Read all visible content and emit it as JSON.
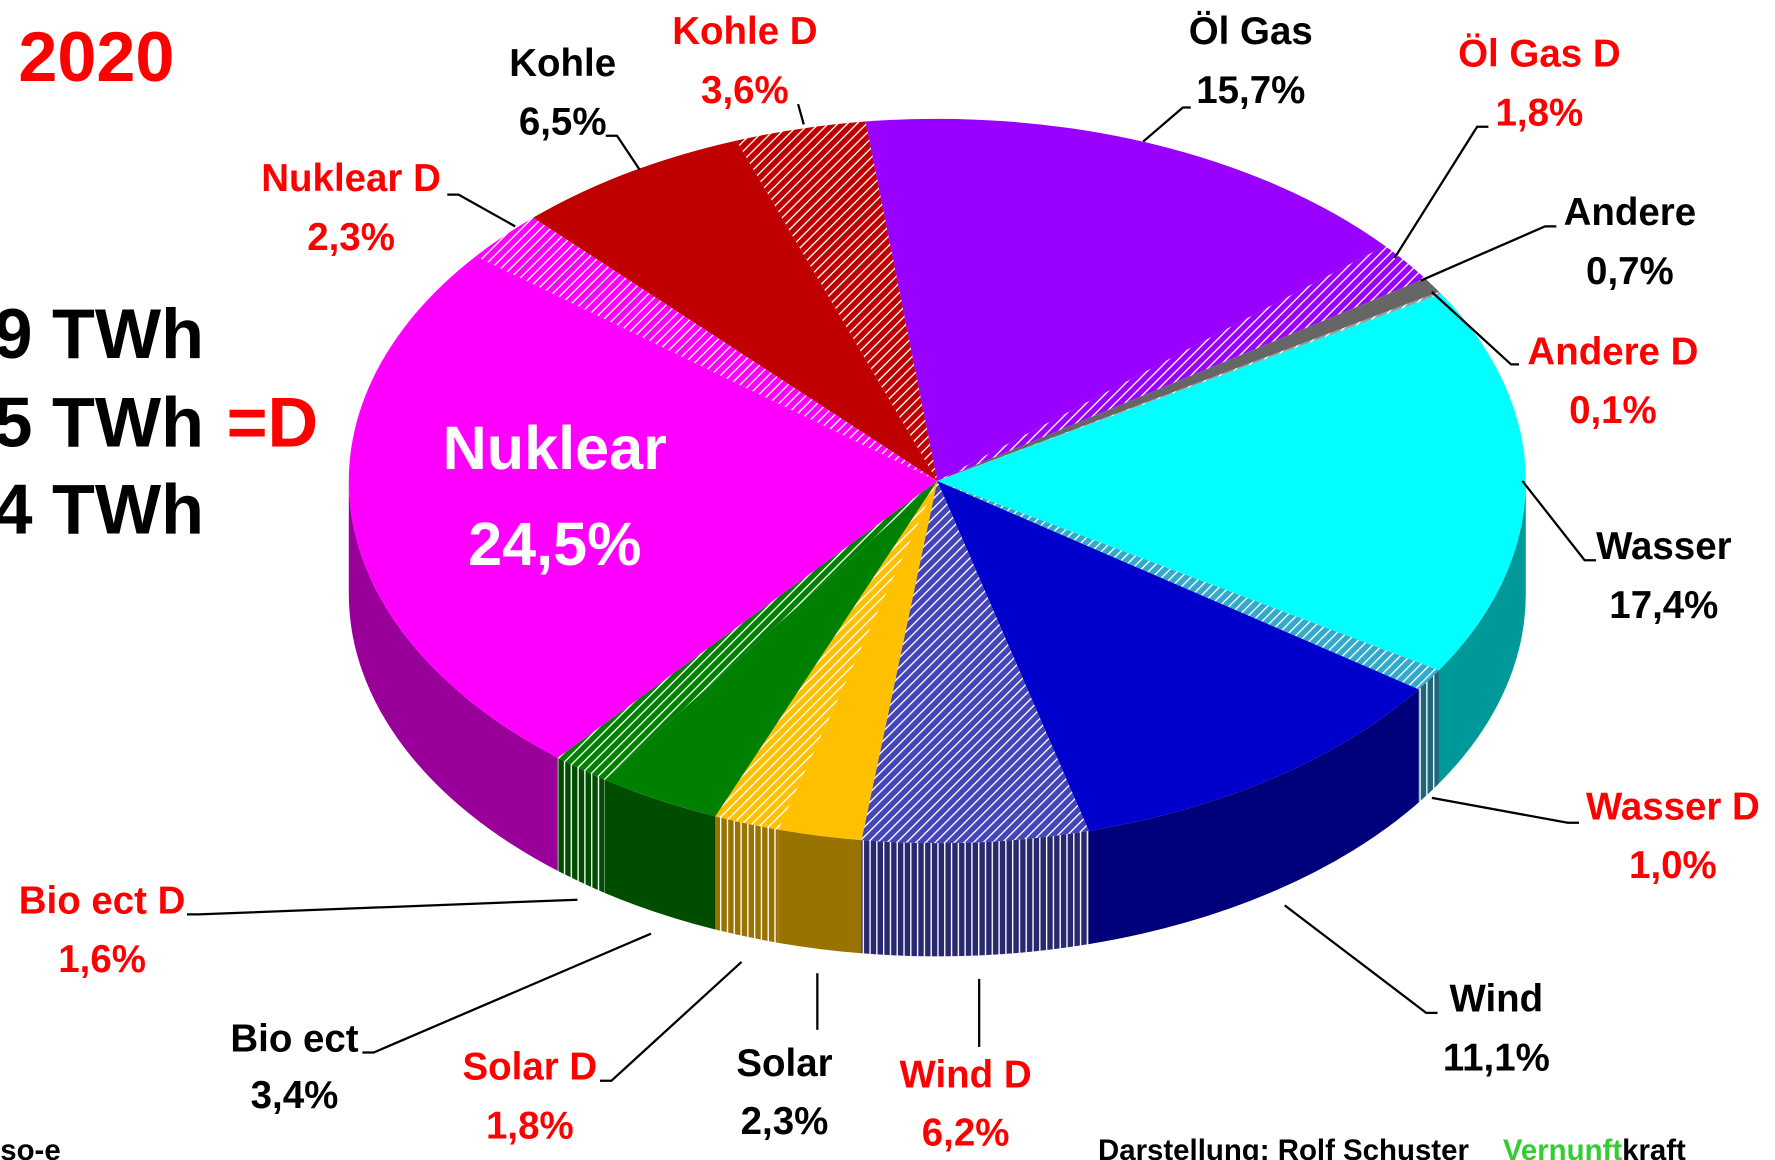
{
  "chart_data": {
    "type": "pie",
    "year": "2020",
    "energy_lines": [
      "9 TWh",
      "5 TWh",
      "4 TWh"
    ],
    "energy_marker": "=D",
    "source": "so-e",
    "credit": "Darstellung:  Rolf Schuster",
    "brand": [
      "Vernunft",
      "kraft"
    ],
    "categories": [
      "Öl Gas",
      "Öl Gas D",
      "Andere",
      "Andere D",
      "Wasser",
      "Wasser D",
      "Wind",
      "Wind D",
      "Solar",
      "Solar D",
      "Bio ect",
      "Bio ect D",
      "Nuklear",
      "Nuklear D",
      "Kohle",
      "Kohle D"
    ],
    "values": [
      15.7,
      1.8,
      0.7,
      0.1,
      17.4,
      1.0,
      11.1,
      6.2,
      2.3,
      1.8,
      3.4,
      1.6,
      24.5,
      2.3,
      6.5,
      3.6
    ],
    "value_labels": [
      "15,7%",
      "1,8%",
      "0,7%",
      "0,1%",
      "17,4%",
      "1,0%",
      "11,1%",
      "6,2%",
      "2,3%",
      "1,8%",
      "3,4%",
      "1,6%",
      "24,5%",
      "2,3%",
      "6,5%",
      "3,6%"
    ],
    "colors": [
      "#9900ff",
      "#9900ff",
      "#666666",
      "#999999",
      "#00ffff",
      "#33aacc",
      "#0000cc",
      "#4444bb",
      "#ffc000",
      "#ffc000",
      "#008000",
      "#008000",
      "#ff00ff",
      "#ff00ff",
      "#c00000",
      "#c00000"
    ],
    "hatched": [
      false,
      true,
      false,
      true,
      false,
      true,
      false,
      true,
      false,
      true,
      false,
      true,
      false,
      true,
      false,
      true
    ]
  }
}
